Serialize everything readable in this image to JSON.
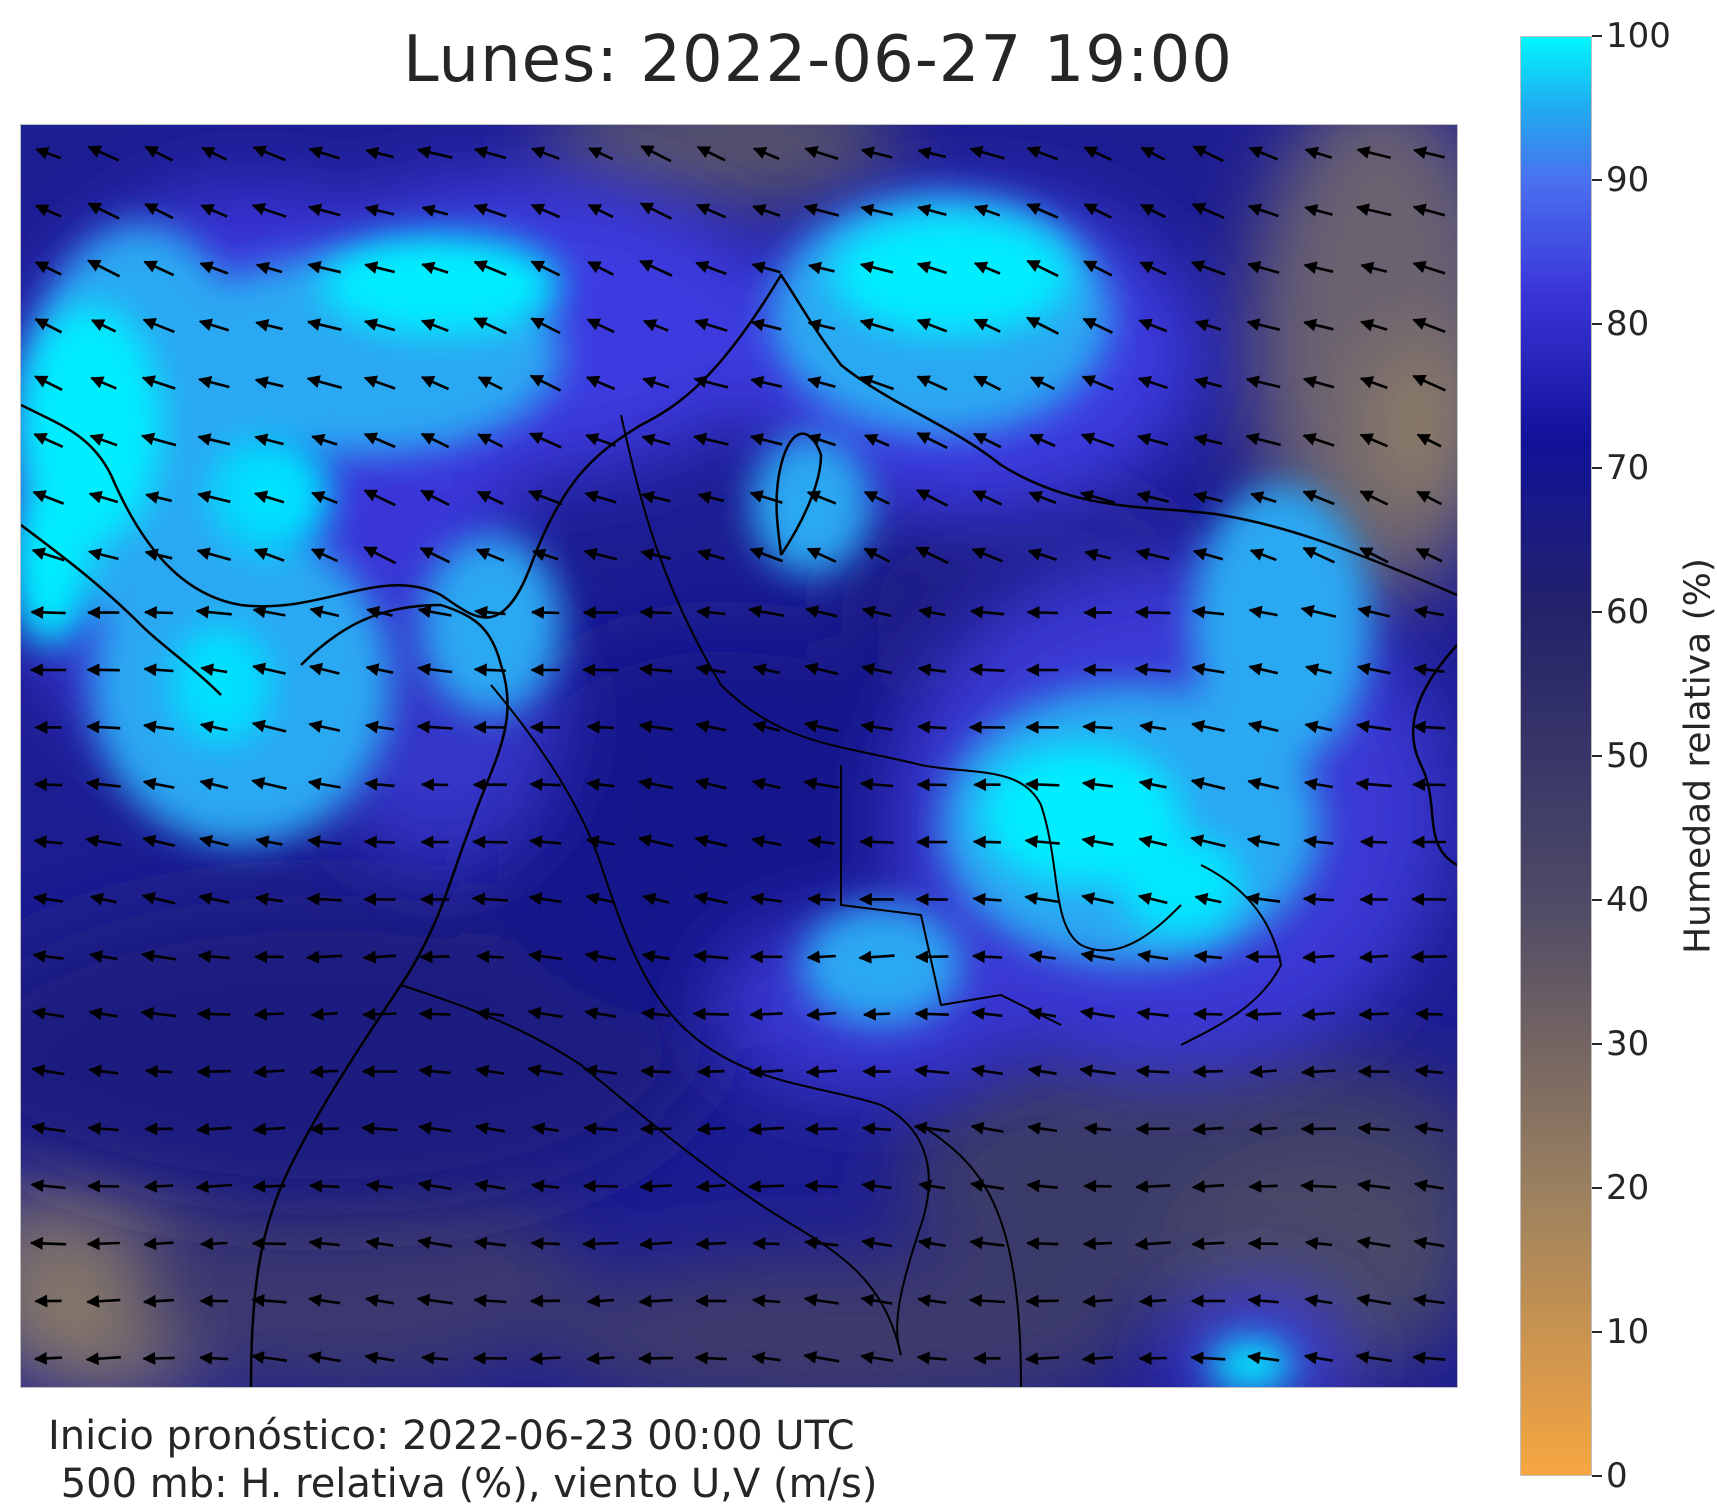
{
  "title": "Lunes: 2022-06-27 19:00",
  "footer": {
    "line1": "Inicio pronóstico: 2022-06-23 00:00 UTC",
    "line2": " 500 mb: H. relativa (%), viento U,V (m/s)"
  },
  "colorbar": {
    "label": "Humedad relativa (%)",
    "ticks": [
      "0",
      "10",
      "20",
      "30",
      "40",
      "50",
      "60",
      "70",
      "80",
      "90",
      "100"
    ],
    "range": [
      0,
      100
    ],
    "colors": {
      "0": "#f6a640",
      "20": "#9a8060",
      "40": "#4e4a66",
      "60": "#23236a",
      "72": "#12129a",
      "82": "#3a34d8",
      "90": "#4a70f0",
      "95": "#22aaf0",
      "100": "#00f6ff"
    }
  },
  "map": {
    "variable": "relative humidity 500 mb",
    "overlay": "wind vectors U,V",
    "background_color": "#1a1a9a",
    "coastline_color": "#000000"
  }
}
